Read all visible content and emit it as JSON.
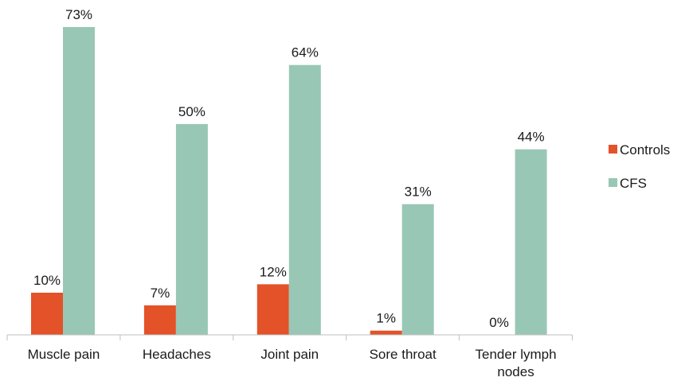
{
  "chart_data": {
    "type": "bar",
    "title": "",
    "xlabel": "",
    "ylabel": "",
    "ylim": [
      0,
      80
    ],
    "grid": false,
    "legend_position": "right",
    "value_suffix": "%",
    "categories": [
      [
        "Muscle pain"
      ],
      [
        "Headaches"
      ],
      [
        "Joint pain"
      ],
      [
        "Sore throat"
      ],
      [
        "Tender lymph",
        "nodes"
      ]
    ],
    "series": [
      {
        "name": "Controls",
        "color": "#e35228",
        "values": [
          10,
          7,
          12,
          1,
          0
        ]
      },
      {
        "name": "CFS",
        "color": "#99c7b5",
        "values": [
          73,
          50,
          64,
          31,
          44
        ]
      }
    ]
  }
}
